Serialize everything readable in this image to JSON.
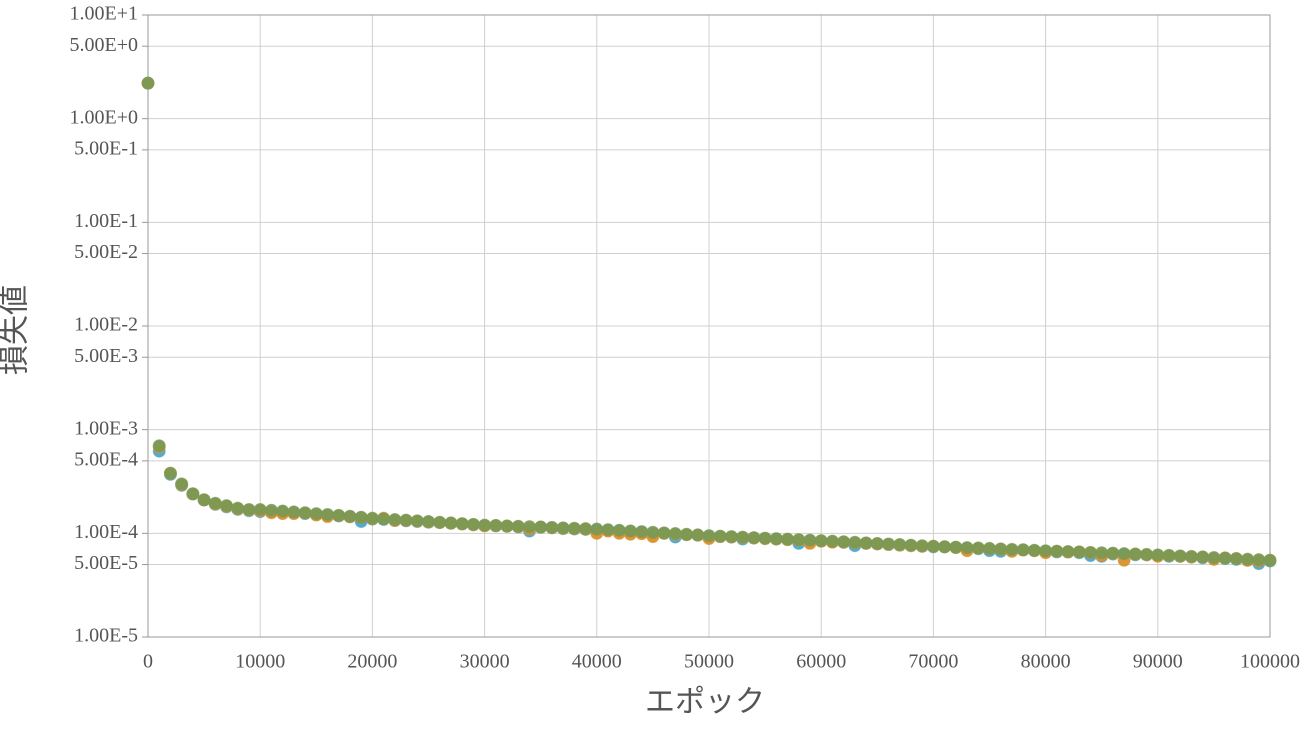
{
  "chart_data": {
    "type": "scatter",
    "x_label": "エポック",
    "y_label": "損失値",
    "xlim": [
      0,
      100000
    ],
    "xticks": [
      0,
      10000,
      20000,
      30000,
      40000,
      50000,
      60000,
      70000,
      80000,
      90000,
      100000
    ],
    "ylim": [
      1e-05,
      10
    ],
    "ylog": true,
    "grid": true,
    "yticks": [
      {
        "value": 10,
        "label": "1.00E+1"
      },
      {
        "value": 5,
        "label": "5.00E+0"
      },
      {
        "value": 1,
        "label": "1.00E+0"
      },
      {
        "value": 0.5,
        "label": "5.00E-1"
      },
      {
        "value": 0.1,
        "label": "1.00E-1"
      },
      {
        "value": 0.05,
        "label": "5.00E-2"
      },
      {
        "value": 0.01,
        "label": "1.00E-2"
      },
      {
        "value": 0.005,
        "label": "5.00E-3"
      },
      {
        "value": 0.001,
        "label": "1.00E-3"
      },
      {
        "value": 0.0005,
        "label": "5.00E-4"
      },
      {
        "value": 0.0001,
        "label": "1.00E-4"
      },
      {
        "value": 5e-05,
        "label": "5.00E-5"
      },
      {
        "value": 1e-05,
        "label": "1.00E-5"
      }
    ],
    "x": [
      0,
      1000,
      2000,
      3000,
      4000,
      5000,
      6000,
      7000,
      8000,
      9000,
      10000,
      11000,
      12000,
      13000,
      14000,
      15000,
      16000,
      17000,
      18000,
      19000,
      20000,
      21000,
      22000,
      23000,
      24000,
      25000,
      26000,
      27000,
      28000,
      29000,
      30000,
      31000,
      32000,
      33000,
      34000,
      35000,
      36000,
      37000,
      38000,
      39000,
      40000,
      41000,
      42000,
      43000,
      44000,
      45000,
      46000,
      47000,
      48000,
      49000,
      50000,
      51000,
      52000,
      53000,
      54000,
      55000,
      56000,
      57000,
      58000,
      59000,
      60000,
      61000,
      62000,
      63000,
      64000,
      65000,
      66000,
      67000,
      68000,
      69000,
      70000,
      71000,
      72000,
      73000,
      74000,
      75000,
      76000,
      77000,
      78000,
      79000,
      80000,
      81000,
      82000,
      83000,
      84000,
      85000,
      86000,
      87000,
      88000,
      89000,
      90000,
      91000,
      92000,
      93000,
      94000,
      95000,
      96000,
      97000,
      98000,
      99000,
      100000
    ],
    "series": [
      {
        "color": "#4aa8cc",
        "values": [
          2.2,
          0.00062,
          0.00037,
          0.00029,
          0.00024,
          0.00021,
          0.00019,
          0.00018,
          0.00017,
          0.000165,
          0.000162,
          0.00016,
          0.000162,
          0.000157,
          0.000155,
          0.000152,
          0.00015,
          0.000147,
          0.000145,
          0.00013,
          0.000137,
          0.000136,
          0.000133,
          0.000132,
          0.00013,
          0.000128,
          0.000127,
          0.000125,
          0.000123,
          0.000121,
          0.000119,
          0.000118,
          0.000117,
          0.000115,
          0.000105,
          0.000114,
          0.000113,
          0.000111,
          0.00011,
          0.000109,
          0.000108,
          0.000107,
          0.000106,
          0.000104,
          0.000103,
          0.0001,
          0.0001,
          9.2e-05,
          9.7e-05,
          9.6e-05,
          9.3e-05,
          9.3e-05,
          9.2e-05,
          8.8e-05,
          9e-05,
          8.9e-05,
          8.8e-05,
          8.7e-05,
          8e-05,
          8.5e-05,
          8.4e-05,
          8.3e-05,
          8.2e-05,
          7.6e-05,
          8e-05,
          7.9e-05,
          7.8e-05,
          7.7e-05,
          7.6e-05,
          7.5e-05,
          7.4e-05,
          7.4e-05,
          7.3e-05,
          7.2e-05,
          7.1e-05,
          6.8e-05,
          6.7e-05,
          6.9e-05,
          6.9e-05,
          6.8e-05,
          6.7e-05,
          6.6e-05,
          6.6e-05,
          6.5e-05,
          6.1e-05,
          6e-05,
          6.3e-05,
          6.3e-05,
          6.2e-05,
          6.2e-05,
          6.1e-05,
          6e-05,
          6e-05,
          5.9e-05,
          5.8e-05,
          5.7e-05,
          5.7e-05,
          5.6e-05,
          5.5e-05,
          5.1e-05,
          5.4e-05
        ]
      },
      {
        "color": "#d9902c",
        "values": [
          2.2,
          0.00068,
          0.00038,
          0.000295,
          0.00024,
          0.00021,
          0.000192,
          0.000182,
          0.000172,
          0.000168,
          0.000165,
          0.000158,
          0.000155,
          0.000155,
          0.000157,
          0.00015,
          0.000145,
          0.000148,
          0.000144,
          0.000142,
          0.000138,
          0.00014,
          0.000133,
          0.000133,
          0.000131,
          0.000129,
          0.000127,
          0.000125,
          0.000123,
          0.000121,
          0.000118,
          0.000119,
          0.000117,
          0.000116,
          0.00011,
          0.000115,
          0.000113,
          0.000112,
          0.000111,
          0.00011,
          0.0001,
          0.000105,
          0.0001,
          9.8e-05,
          9.9e-05,
          9.3e-05,
          0.0001,
          9.8e-05,
          9.7e-05,
          9.6e-05,
          8.9e-05,
          9.3e-05,
          9.2e-05,
          9.1e-05,
          9e-05,
          8.9e-05,
          8.8e-05,
          8.7e-05,
          8.6e-05,
          8e-05,
          8.4e-05,
          8.2e-05,
          8.2e-05,
          8.1e-05,
          8e-05,
          7.9e-05,
          7.8e-05,
          7.7e-05,
          7.6e-05,
          7.5e-05,
          7.5e-05,
          7.4e-05,
          7.3e-05,
          6.8e-05,
          7.2e-05,
          7.1e-05,
          7e-05,
          6.7e-05,
          6.9e-05,
          6.8e-05,
          6.5e-05,
          6.7e-05,
          6.6e-05,
          6.6e-05,
          6.5e-05,
          6.1e-05,
          6.4e-05,
          5.5e-05,
          6.3e-05,
          6.2e-05,
          6e-05,
          6.1e-05,
          6e-05,
          5.9e-05,
          5.9e-05,
          5.6e-05,
          5.8e-05,
          5.7e-05,
          5.5e-05,
          5.4e-05,
          5.5e-05
        ]
      },
      {
        "color": "#7a9a55",
        "values": [
          2.2,
          0.0007,
          0.00038,
          0.0003,
          0.00024,
          0.00021,
          0.000195,
          0.000185,
          0.000175,
          0.00017,
          0.00017,
          0.000167,
          0.000164,
          0.000161,
          0.000158,
          0.000155,
          0.000152,
          0.000149,
          0.000146,
          0.000143,
          0.00014,
          0.000138,
          0.000136,
          0.000134,
          0.000132,
          0.00013,
          0.000128,
          0.000126,
          0.000124,
          0.000122,
          0.00012,
          0.000119,
          0.000118,
          0.000117,
          0.000116,
          0.000115,
          0.000114,
          0.000113,
          0.000112,
          0.000111,
          0.00011,
          0.0001085,
          0.000107,
          0.0001055,
          0.000104,
          0.0001025,
          0.000101,
          9.95e-05,
          9.8e-05,
          9.65e-05,
          9.5e-05,
          9.4e-05,
          9.3e-05,
          9.2e-05,
          9.1e-05,
          9e-05,
          8.9e-05,
          8.8e-05,
          8.7e-05,
          8.6e-05,
          8.5e-05,
          8.4e-05,
          8.3e-05,
          8.2e-05,
          8.1e-05,
          8e-05,
          7.9e-05,
          7.8e-05,
          7.7e-05,
          7.6e-05,
          7.5e-05,
          7.43e-05,
          7.36e-05,
          7.29e-05,
          7.22e-05,
          7.15e-05,
          7.08e-05,
          7.01e-05,
          6.94e-05,
          6.87e-05,
          6.8e-05,
          6.74e-05,
          6.68e-05,
          6.62e-05,
          6.56e-05,
          6.5e-05,
          6.44e-05,
          6.38e-05,
          6.32e-05,
          6.26e-05,
          6.2e-05,
          6.13e-05,
          6.06e-05,
          5.99e-05,
          5.92e-05,
          5.85e-05,
          5.78e-05,
          5.71e-05,
          5.64e-05,
          5.57e-05,
          5.5e-05
        ]
      }
    ]
  }
}
